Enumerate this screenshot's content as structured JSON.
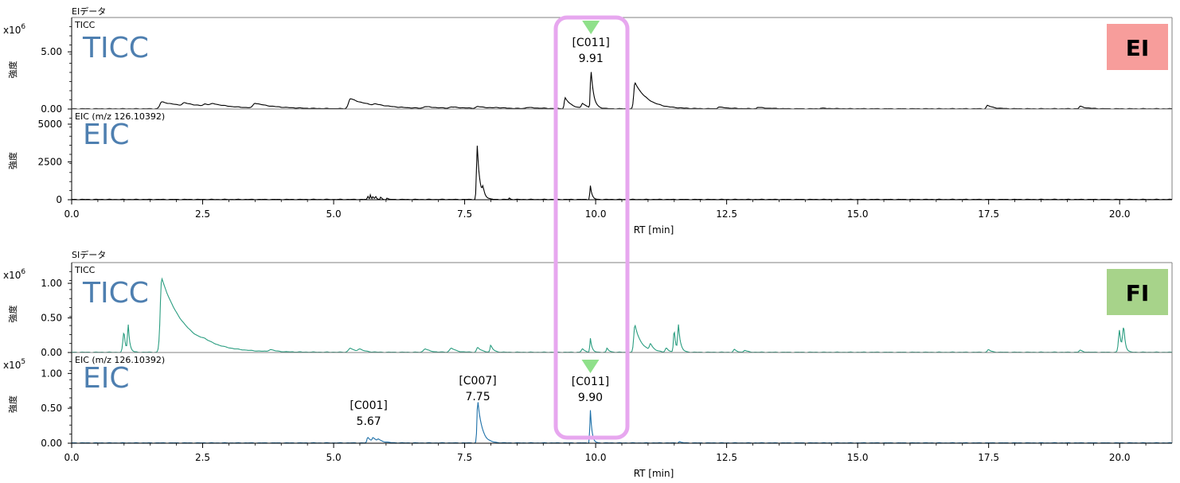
{
  "ui": {
    "highlight_color": "#e7a7ef",
    "marker_color": "#8fe08a",
    "ei_badge_color": "#f79d9b",
    "fi_badge_color": "#a7d38a",
    "big_label_color": "#4e7fb0"
  },
  "chart_data": [
    {
      "type": "line",
      "group": "ei",
      "section_title": "EIデータ",
      "trace_label": "TICC",
      "big_label": "TICC",
      "badge": "EI",
      "multiplier": "x10",
      "exponent": "6",
      "ylabel": "強度",
      "ylim": [
        0,
        8
      ],
      "y_ticks": [
        {
          "v": 0,
          "t": "0.00"
        },
        {
          "v": 5,
          "t": "5.00"
        }
      ],
      "line_color": "#000000",
      "peaks": [
        [
          1.72,
          0.6,
          0.05,
          0.55
        ],
        [
          2.15,
          0.25,
          0.05,
          0.4
        ],
        [
          2.55,
          0.2,
          0.05,
          0.4
        ],
        [
          2.7,
          0.15,
          0.05,
          0.4
        ],
        [
          3.5,
          0.42,
          0.05,
          0.4
        ],
        [
          5.32,
          0.88,
          0.05,
          0.45
        ],
        [
          5.8,
          0.12,
          0.05,
          0.3
        ],
        [
          6.75,
          0.15,
          0.05,
          0.3
        ],
        [
          7.25,
          0.12,
          0.05,
          0.3
        ],
        [
          7.75,
          0.16,
          0.05,
          0.3
        ],
        [
          8.1,
          0.05,
          0.05,
          0.3
        ],
        [
          8.7,
          0.1,
          0.05,
          0.3
        ],
        [
          9.42,
          0.95,
          0.025,
          0.12
        ],
        [
          9.75,
          0.4,
          0.03,
          0.12
        ],
        [
          9.91,
          3.4,
          0.015,
          0.05
        ],
        [
          10.75,
          2.3,
          0.03,
          0.25
        ],
        [
          12.35,
          0.15,
          0.03,
          0.2
        ],
        [
          13.1,
          0.12,
          0.03,
          0.2
        ],
        [
          14.3,
          0.05,
          0.03,
          0.2
        ],
        [
          17.48,
          0.3,
          0.03,
          0.12
        ],
        [
          19.25,
          0.22,
          0.03,
          0.12
        ]
      ],
      "annotations": [
        {
          "x": 9.91,
          "label": "[C011]",
          "value": "9.91",
          "marker": true
        }
      ]
    },
    {
      "type": "line",
      "group": "ei",
      "trace_label": "EIC (m/z 126.10392)",
      "big_label": "EIC",
      "ylabel": "強度",
      "ylim": [
        0,
        6000
      ],
      "y_ticks": [
        {
          "v": 0,
          "t": "0"
        },
        {
          "v": 2500,
          "t": "2500"
        },
        {
          "v": 5000,
          "t": "5000"
        }
      ],
      "line_color": "#000000",
      "peaks": [
        [
          5.65,
          250,
          0.01,
          0.02
        ],
        [
          5.7,
          300,
          0.01,
          0.02
        ],
        [
          5.75,
          200,
          0.01,
          0.02
        ],
        [
          5.8,
          220,
          0.01,
          0.02
        ],
        [
          5.9,
          180,
          0.01,
          0.02
        ],
        [
          6.02,
          100,
          0.01,
          0.02
        ],
        [
          7.74,
          3550,
          0.02,
          0.05
        ],
        [
          7.85,
          500,
          0.02,
          0.04
        ],
        [
          8.35,
          120,
          0.01,
          0.02
        ],
        [
          9.9,
          920,
          0.015,
          0.03
        ]
      ],
      "annotations": []
    },
    {
      "type": "line",
      "group": "fi",
      "section_title": "SIデータ",
      "trace_label": "TICC",
      "big_label": "TICC",
      "badge": "FI",
      "multiplier": "x10",
      "exponent": "6",
      "ylabel": "強度",
      "ylim": [
        0,
        1.3
      ],
      "y_ticks": [
        {
          "v": 0,
          "t": "0.00"
        },
        {
          "v": 0.5,
          "t": "0.50"
        },
        {
          "v": 1.0,
          "t": "1.00"
        }
      ],
      "line_color": "#2a9d80",
      "peaks": [
        [
          1.0,
          0.3,
          0.03,
          0.03
        ],
        [
          1.08,
          0.38,
          0.02,
          0.03
        ],
        [
          1.72,
          1.07,
          0.04,
          0.45
        ],
        [
          2.55,
          0.03,
          0.1,
          0.2
        ],
        [
          3.8,
          0.03,
          0.05,
          0.1
        ],
        [
          5.32,
          0.06,
          0.05,
          0.1
        ],
        [
          5.5,
          0.04,
          0.05,
          0.1
        ],
        [
          6.75,
          0.05,
          0.05,
          0.1
        ],
        [
          7.25,
          0.06,
          0.05,
          0.1
        ],
        [
          7.75,
          0.07,
          0.03,
          0.08
        ],
        [
          8.0,
          0.1,
          0.02,
          0.05
        ],
        [
          9.75,
          0.05,
          0.03,
          0.05
        ],
        [
          9.9,
          0.2,
          0.015,
          0.03
        ],
        [
          10.22,
          0.06,
          0.02,
          0.04
        ],
        [
          10.75,
          0.4,
          0.03,
          0.12
        ],
        [
          11.05,
          0.1,
          0.03,
          0.06
        ],
        [
          11.35,
          0.06,
          0.03,
          0.05
        ],
        [
          11.5,
          0.33,
          0.02,
          0.03
        ],
        [
          11.58,
          0.38,
          0.02,
          0.04
        ],
        [
          12.65,
          0.04,
          0.03,
          0.05
        ],
        [
          12.85,
          0.03,
          0.03,
          0.05
        ],
        [
          17.5,
          0.04,
          0.03,
          0.05
        ],
        [
          19.25,
          0.03,
          0.03,
          0.05
        ],
        [
          20.0,
          0.33,
          0.03,
          0.03
        ],
        [
          20.08,
          0.36,
          0.03,
          0.03
        ]
      ],
      "annotations": []
    },
    {
      "type": "line",
      "group": "fi",
      "trace_label": "EIC (m/z 126.10392)",
      "big_label": "EIC",
      "multiplier": "x10",
      "exponent": "5",
      "ylabel": "強度",
      "ylim": [
        0,
        1.3
      ],
      "y_ticks": [
        {
          "v": 0,
          "t": "0.00"
        },
        {
          "v": 0.5,
          "t": "0.50"
        },
        {
          "v": 1.0,
          "t": "1.00"
        }
      ],
      "line_color": "#1c6fa8",
      "peaks": [
        [
          5.65,
          0.08,
          0.02,
          0.1
        ],
        [
          5.75,
          0.05,
          0.02,
          0.1
        ],
        [
          5.85,
          0.03,
          0.02,
          0.1
        ],
        [
          7.75,
          0.62,
          0.02,
          0.08
        ],
        [
          9.9,
          0.47,
          0.015,
          0.03
        ],
        [
          11.6,
          0.02,
          0.02,
          0.04
        ]
      ],
      "annotations": [
        {
          "x": 5.67,
          "label": "[C001]",
          "value": "5.67",
          "marker": false
        },
        {
          "x": 7.75,
          "label": "[C007]",
          "value": "7.75",
          "marker": false
        },
        {
          "x": 9.9,
          "label": "[C011]",
          "value": "9.90",
          "marker": true
        }
      ]
    }
  ],
  "x_axes": [
    {
      "group": "ei",
      "xlabel": "RT [min]",
      "xlim": [
        0,
        21
      ],
      "ticks": [
        {
          "v": 0,
          "t": "0.0"
        },
        {
          "v": 2.5,
          "t": "2.5"
        },
        {
          "v": 5,
          "t": "5.0"
        },
        {
          "v": 7.5,
          "t": "7.5"
        },
        {
          "v": 10,
          "t": "10.0"
        },
        {
          "v": 12.5,
          "t": "12.5"
        },
        {
          "v": 15,
          "t": "15.0"
        },
        {
          "v": 17.5,
          "t": "17.5"
        },
        {
          "v": 20,
          "t": "20.0"
        }
      ]
    },
    {
      "group": "fi",
      "xlabel": "RT [min]",
      "xlim": [
        0,
        21
      ],
      "ticks": [
        {
          "v": 0,
          "t": "0.0"
        },
        {
          "v": 2.5,
          "t": "2.5"
        },
        {
          "v": 5,
          "t": "5.0"
        },
        {
          "v": 7.5,
          "t": "7.5"
        },
        {
          "v": 10,
          "t": "10.0"
        },
        {
          "v": 12.5,
          "t": "12.5"
        },
        {
          "v": 15,
          "t": "15.0"
        },
        {
          "v": 17.5,
          "t": "17.5"
        },
        {
          "v": 20,
          "t": "20.0"
        }
      ]
    }
  ]
}
